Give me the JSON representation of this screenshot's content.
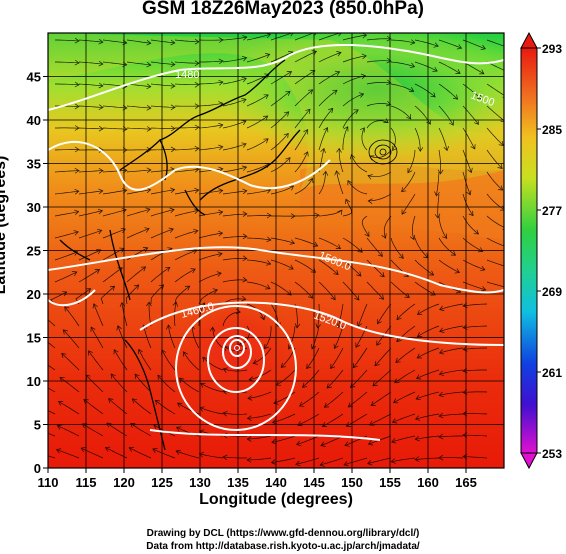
{
  "title": "GSM 18Z26May2023 (850.0hPa)",
  "x_axis": {
    "label": "Longitude (degrees)",
    "ticks": [
      "110",
      "115",
      "120",
      "125",
      "130",
      "135",
      "140",
      "145",
      "150",
      "155",
      "160",
      "165"
    ]
  },
  "y_axis": {
    "label": "Latitude  (degrees)",
    "ticks": [
      "0",
      "5",
      "10",
      "15",
      "20",
      "25",
      "30",
      "35",
      "40",
      "45"
    ]
  },
  "colorbar": {
    "ticks": [
      "293",
      "285",
      "277",
      "269",
      "261",
      "253"
    ]
  },
  "contour_labels": [
    "1480",
    "1500",
    "1560.0",
    "1520.0",
    "1460.0"
  ],
  "credits": [
    "Drawing by DCL (https://www.gfd-dennou.org/library/dcl/)",
    "Data from http://database.rish.kyoto-u.ac.jp/arch/jmadata/"
  ],
  "chart_data": {
    "type": "heatmap",
    "title": "GSM 18Z26May2023 (850.0hPa)",
    "xlabel": "Longitude (degrees)",
    "ylabel": "Latitude  (degrees)",
    "xlim": [
      110,
      170
    ],
    "ylim": [
      0,
      50
    ],
    "colorbar_range": [
      253,
      293
    ],
    "colors": {
      "warm": "#e8200a",
      "orange": "#f07820",
      "yellow": "#e8e020",
      "green": "#30d040",
      "cyan": "#10c0e0",
      "blue": "#1010d0",
      "magenta": "#e010d0"
    },
    "cyclones": [
      {
        "lon": 135,
        "lat": 15.5
      },
      {
        "lon": 153.5,
        "lat": 38.5
      }
    ]
  }
}
